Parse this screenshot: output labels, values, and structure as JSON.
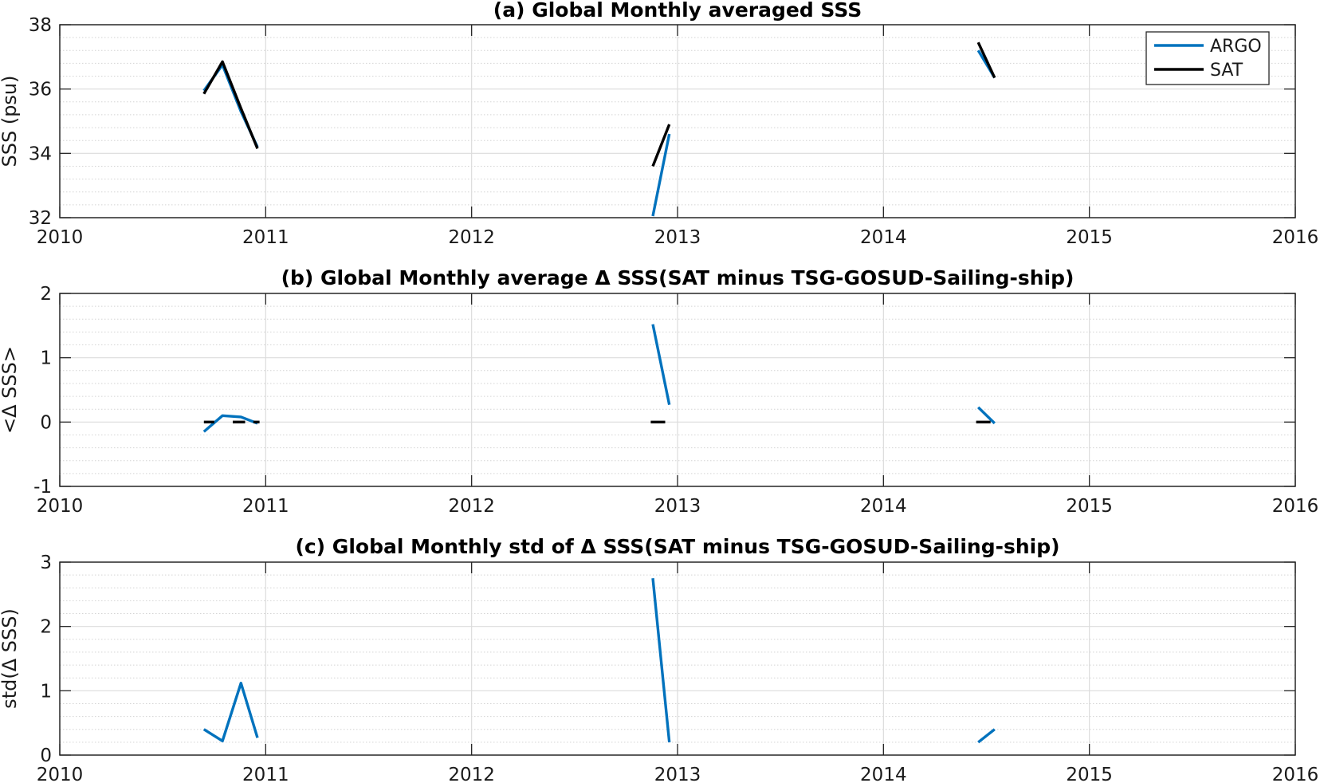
{
  "chart_data": [
    {
      "type": "line",
      "title": "(a) Global Monthly averaged SSS",
      "xlabel": "",
      "ylabel": "SSS (psu)",
      "xlim": [
        2010,
        2016
      ],
      "ylim": [
        32,
        38
      ],
      "xticks": [
        2010,
        2011,
        2012,
        2013,
        2014,
        2015,
        2016
      ],
      "yticks": [
        32,
        34,
        36,
        38
      ],
      "grid": true,
      "legend": {
        "placement": "top-right",
        "entries": [
          "ARGO",
          "SAT"
        ]
      },
      "series": [
        {
          "name": "ARGO",
          "color": "#0072BD",
          "segments": [
            [
              [
                2010.7,
                35.95
              ],
              [
                2010.79,
                36.75
              ],
              [
                2010.88,
                35.3
              ],
              [
                2010.96,
                34.2
              ]
            ],
            [
              [
                2012.88,
                32.05
              ],
              [
                2012.96,
                34.6
              ]
            ],
            [
              [
                2014.46,
                37.2
              ],
              [
                2014.54,
                36.35
              ]
            ]
          ]
        },
        {
          "name": "SAT",
          "color": "#000000",
          "segments": [
            [
              [
                2010.7,
                35.85
              ],
              [
                2010.79,
                36.85
              ],
              [
                2010.88,
                35.4
              ],
              [
                2010.96,
                34.15
              ]
            ],
            [
              [
                2012.88,
                33.6
              ],
              [
                2012.96,
                34.9
              ]
            ],
            [
              [
                2014.46,
                37.45
              ],
              [
                2014.54,
                36.35
              ]
            ]
          ]
        }
      ]
    },
    {
      "type": "line",
      "title": "(b) Global Monthly average Δ SSS(SAT minus TSG-GOSUD-Sailing-ship)",
      "xlabel": "",
      "ylabel": "<Δ SSS>",
      "xlim": [
        2010,
        2016
      ],
      "ylim": [
        -1,
        2
      ],
      "xticks": [
        2010,
        2011,
        2012,
        2013,
        2014,
        2015,
        2016
      ],
      "yticks": [
        -1,
        0,
        1,
        2
      ],
      "grid": true,
      "series": [
        {
          "name": "ARGO",
          "color": "#0072BD",
          "segments": [
            [
              [
                2010.7,
                -0.15
              ],
              [
                2010.79,
                0.1
              ],
              [
                2010.88,
                0.08
              ],
              [
                2010.96,
                -0.02
              ]
            ],
            [
              [
                2012.88,
                1.52
              ],
              [
                2012.96,
                0.27
              ]
            ],
            [
              [
                2014.46,
                0.23
              ],
              [
                2014.54,
                -0.02
              ]
            ]
          ]
        },
        {
          "name": "SAT",
          "color": "#000000",
          "segments": [
            [
              [
                2010.7,
                0.0
              ],
              [
                2010.75,
                0.0
              ]
            ],
            [
              [
                2010.84,
                0.0
              ],
              [
                2010.9,
                0.0
              ]
            ],
            [
              [
                2010.94,
                0.0
              ],
              [
                2010.97,
                0.0
              ]
            ],
            [
              [
                2012.87,
                0.0
              ],
              [
                2012.94,
                0.0
              ]
            ],
            [
              [
                2014.45,
                0.0
              ],
              [
                2014.52,
                0.0
              ]
            ]
          ]
        }
      ]
    },
    {
      "type": "line",
      "title": "(c) Global Monthly std of Δ SSS(SAT minus TSG-GOSUD-Sailing-ship)",
      "xlabel": "",
      "ylabel": "std(Δ SSS)",
      "xlim": [
        2010,
        2016
      ],
      "ylim": [
        0,
        3
      ],
      "xticks": [
        2010,
        2011,
        2012,
        2013,
        2014,
        2015,
        2016
      ],
      "yticks": [
        0,
        1,
        2,
        3
      ],
      "grid": true,
      "series": [
        {
          "name": "ARGO",
          "color": "#0072BD",
          "segments": [
            [
              [
                2010.7,
                0.4
              ],
              [
                2010.79,
                0.22
              ],
              [
                2010.88,
                1.12
              ],
              [
                2010.96,
                0.27
              ]
            ],
            [
              [
                2012.88,
                2.75
              ],
              [
                2012.96,
                0.2
              ]
            ],
            [
              [
                2014.46,
                0.2
              ],
              [
                2014.54,
                0.4
              ]
            ]
          ]
        }
      ]
    }
  ]
}
